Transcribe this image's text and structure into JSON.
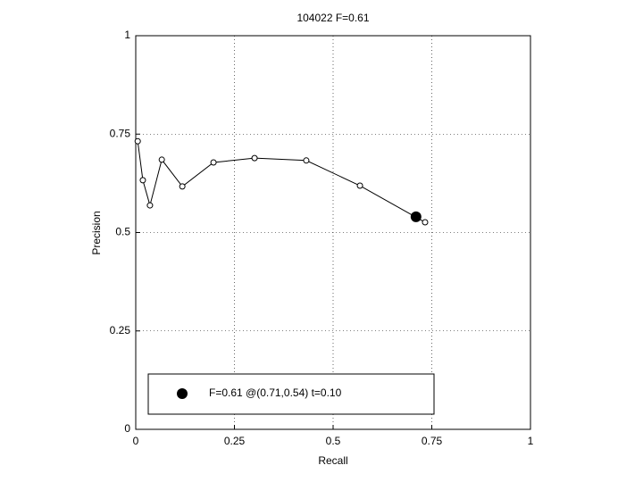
{
  "chart_data": {
    "type": "line",
    "title": "104022 F=0.61",
    "x_label": "Recall",
    "y_label": "Precision",
    "xlim": [
      0,
      1
    ],
    "ylim": [
      0,
      1
    ],
    "xticks": [
      0,
      0.25,
      0.5,
      0.75,
      1
    ],
    "yticks": [
      0,
      0.25,
      0.5,
      0.75,
      1
    ],
    "grid": true,
    "series": [
      {
        "color": "#000000",
        "marker": "open-circle",
        "x": [
          0.005,
          0.018,
          0.036,
          0.066,
          0.118,
          0.197,
          0.301,
          0.432,
          0.568,
          0.733
        ],
        "values": [
          0.732,
          0.633,
          0.569,
          0.685,
          0.617,
          0.678,
          0.689,
          0.683,
          0.619,
          0.526
        ]
      },
      {
        "name": "F=0.61 @(0.71,0.54) t=0.10",
        "color": "#000000",
        "marker": "filled-circle",
        "x": [
          0.71
        ],
        "values": [
          0.54
        ]
      }
    ]
  }
}
